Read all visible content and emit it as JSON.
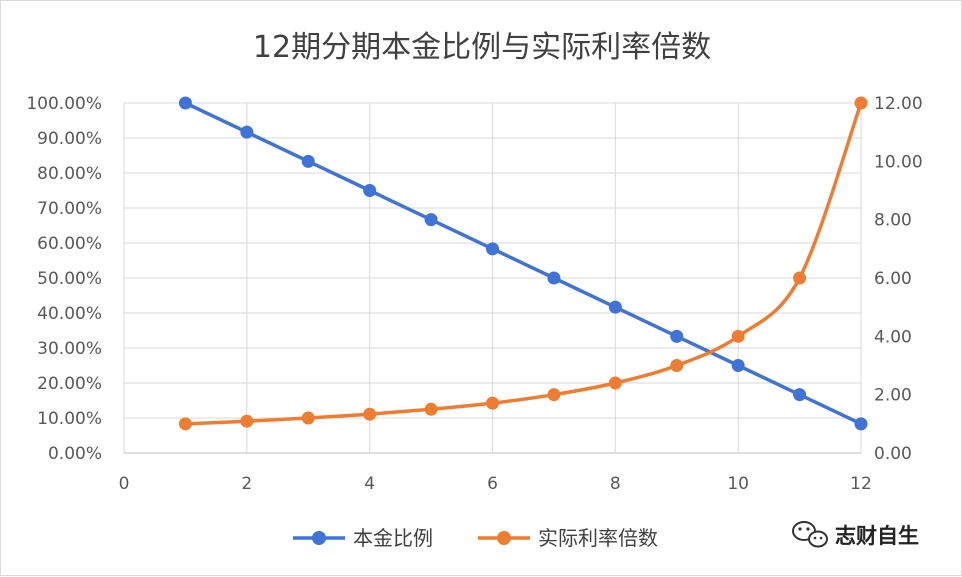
{
  "chart_data": {
    "type": "line",
    "title": "12期分期本金比例与实际利率倍数",
    "x": [
      1,
      2,
      3,
      4,
      5,
      6,
      7,
      8,
      9,
      10,
      11,
      12
    ],
    "xlim": [
      0,
      12
    ],
    "x_ticks": [
      "0",
      "2",
      "4",
      "6",
      "8",
      "10",
      "12"
    ],
    "ylim_left": [
      0,
      1
    ],
    "y_ticks_left": [
      "0.00%",
      "10.00%",
      "20.00%",
      "30.00%",
      "40.00%",
      "50.00%",
      "60.00%",
      "70.00%",
      "80.00%",
      "90.00%",
      "100.00%"
    ],
    "ylim_right": [
      0,
      12
    ],
    "y_ticks_right": [
      "0.00",
      "2.00",
      "4.00",
      "6.00",
      "8.00",
      "10.00",
      "12.00"
    ],
    "grid": true,
    "legend_position": "bottom",
    "series": [
      {
        "name": "本金比例",
        "axis": "left",
        "color": "#3f73d7",
        "values": [
          1.0,
          0.9167,
          0.8333,
          0.75,
          0.6667,
          0.5833,
          0.5,
          0.4167,
          0.3333,
          0.25,
          0.1667,
          0.0833
        ]
      },
      {
        "name": "实际利率倍数",
        "axis": "right",
        "color": "#ee7d31",
        "values": [
          1.0,
          1.09,
          1.2,
          1.33,
          1.5,
          1.71,
          2.0,
          2.4,
          3.0,
          4.0,
          6.0,
          12.0
        ]
      }
    ]
  },
  "watermark": {
    "text": "志财自生",
    "icon": "wechat-icon"
  }
}
